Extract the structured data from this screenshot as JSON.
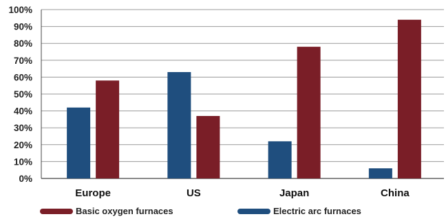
{
  "chart_data": {
    "type": "bar",
    "categories": [
      "Europe",
      "US",
      "Japan",
      "China"
    ],
    "series": [
      {
        "name": "Electric arc furnaces",
        "color": "#1f4e7e",
        "values": [
          42,
          63,
          22,
          6
        ]
      },
      {
        "name": "Basic oxygen furnaces",
        "color": "#7a1e27",
        "values": [
          58,
          37,
          78,
          94
        ]
      }
    ],
    "ylim": [
      0,
      100
    ],
    "yticks": [
      0,
      10,
      20,
      30,
      40,
      50,
      60,
      70,
      80,
      90,
      100
    ],
    "ytick_labels": [
      "0%",
      "10%",
      "20%",
      "30%",
      "40%",
      "50%",
      "60%",
      "70%",
      "80%",
      "90%",
      "100%"
    ],
    "grid": true,
    "legend": {
      "position": "bottom",
      "order": [
        "Basic oxygen furnaces",
        "Electric arc furnaces"
      ]
    },
    "title": "",
    "xlabel": "",
    "ylabel": ""
  }
}
